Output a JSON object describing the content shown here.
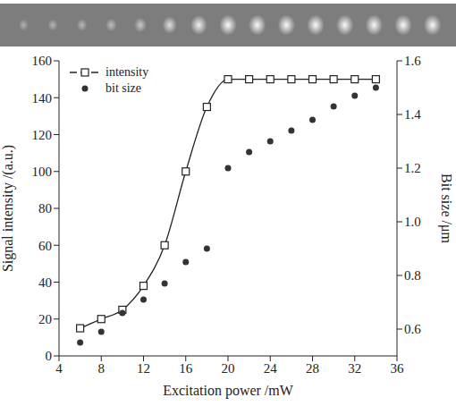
{
  "chart_data": {
    "type": "line",
    "x": [
      6,
      8,
      10,
      12,
      14,
      16,
      18,
      20,
      22,
      24,
      26,
      28,
      30,
      32,
      34
    ],
    "x_label": "Excitation power /mW",
    "y_label": "Signal intensity /(a.u.)",
    "y2_label": "Bit size /μm",
    "xlim": [
      4,
      36
    ],
    "xticks": [
      4,
      8,
      12,
      16,
      20,
      24,
      28,
      32,
      36
    ],
    "ylim": [
      0,
      160
    ],
    "yticks": [
      0,
      20,
      40,
      60,
      80,
      100,
      120,
      140,
      160
    ],
    "y2lim": [
      0.5,
      1.6
    ],
    "y2ticks": [
      0.6,
      0.8,
      1.0,
      1.2,
      1.4,
      1.6
    ],
    "legend": "upper left",
    "series": [
      {
        "name": "intensity",
        "type": "line",
        "marker": "square",
        "color": "#222222",
        "values": [
          15,
          20,
          25,
          38,
          60,
          100,
          135,
          150,
          150,
          150,
          150,
          150,
          150,
          150,
          150
        ]
      },
      {
        "name": "bit size",
        "type": "scatter",
        "marker": "circle",
        "color": "#333333",
        "axis": "y2",
        "values": [
          0.55,
          0.59,
          0.66,
          0.71,
          0.77,
          0.85,
          0.9,
          1.2,
          1.26,
          1.3,
          1.34,
          1.38,
          1.43,
          1.47,
          1.5
        ]
      }
    ]
  }
}
